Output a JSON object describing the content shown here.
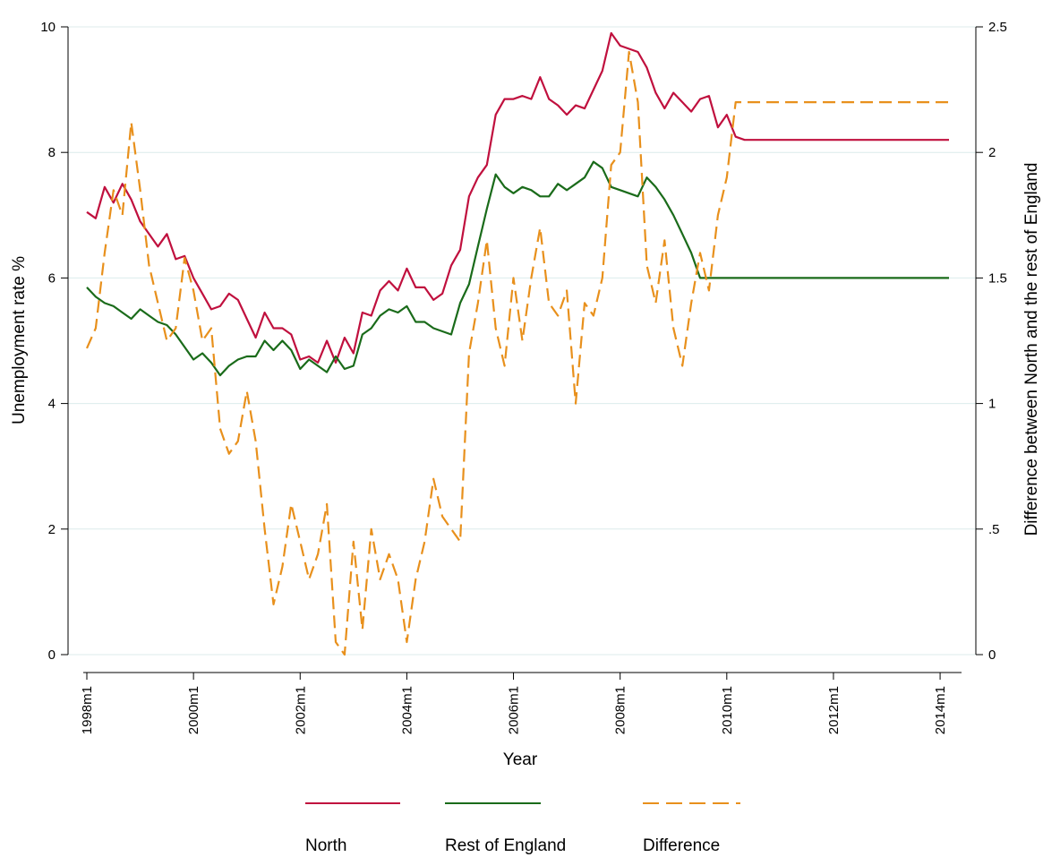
{
  "chart_data": {
    "type": "line",
    "title": "",
    "xlabel": "Year",
    "ylabel_left": "Unemployment rate %",
    "ylabel_right": "Difference between North and the rest of England",
    "x_ticks": [
      "1998m1",
      "2000m1",
      "2002m1",
      "2004m1",
      "2006m1",
      "2008m1",
      "2010m1",
      "2012m1",
      "2014m1"
    ],
    "x_range": [
      "1998m1",
      "2014m3"
    ],
    "ylim_left": [
      0,
      10
    ],
    "ylim_right": [
      0,
      2.5
    ],
    "y_ticks_left": [
      "0",
      "2",
      "4",
      "6",
      "8",
      "10"
    ],
    "y_ticks_right": [
      "0",
      ".5",
      "1",
      "1.5",
      "2",
      "2.5"
    ],
    "grid": "horizontal",
    "legend_position": "bottom",
    "x_month_offset": [
      0,
      2,
      4,
      6,
      8,
      10,
      12,
      14,
      16,
      18,
      20,
      22,
      24,
      26,
      28,
      30,
      32,
      34,
      36,
      38,
      40,
      42,
      44,
      46,
      48,
      50,
      52,
      54,
      56,
      58,
      60,
      62,
      64,
      66,
      68,
      70,
      72,
      74,
      76,
      78,
      80,
      82,
      84,
      86,
      88,
      90,
      92,
      94,
      96,
      98,
      100,
      102,
      104,
      106,
      108,
      110,
      112,
      114,
      116,
      118,
      120,
      122,
      124,
      126,
      128,
      130,
      132,
      134,
      136,
      138,
      140,
      142,
      144,
      146,
      148,
      150,
      152,
      154,
      156,
      158,
      160,
      162,
      164,
      166,
      168,
      170,
      172,
      174,
      194
    ],
    "series": [
      {
        "name": "North",
        "axis": "left",
        "color": "#c0103e",
        "style": "solid",
        "values": [
          7.05,
          6.95,
          7.45,
          7.2,
          7.5,
          7.25,
          6.9,
          6.7,
          6.5,
          6.7,
          6.3,
          6.35,
          6.0,
          5.75,
          5.5,
          5.55,
          5.75,
          5.65,
          5.35,
          5.05,
          5.45,
          5.2,
          5.2,
          5.1,
          4.7,
          4.75,
          4.65,
          5.0,
          4.65,
          5.05,
          4.8,
          5.45,
          5.4,
          5.8,
          5.95,
          5.8,
          6.15,
          5.85,
          5.85,
          5.65,
          5.75,
          6.2,
          6.45,
          7.3,
          7.6,
          7.8,
          8.6,
          8.85,
          8.85,
          8.9,
          8.85,
          9.2,
          8.85,
          8.75,
          8.6,
          8.75,
          8.7,
          9.0,
          9.3,
          9.9,
          9.7,
          9.65,
          9.6,
          9.35,
          8.95,
          8.7,
          8.95,
          8.8,
          8.65,
          8.85,
          8.9,
          8.4,
          8.6,
          8.25,
          8.2,
          8.2,
          8.2,
          8.2,
          8.2,
          8.2,
          8.2,
          8.2,
          8.2,
          8.2,
          8.2,
          8.2,
          8.2,
          8.2,
          8.2
        ]
      },
      {
        "name": "Rest of England",
        "axis": "left",
        "color": "#1a6b1a",
        "style": "solid",
        "values": [
          5.85,
          5.7,
          5.6,
          5.55,
          5.45,
          5.35,
          5.5,
          5.4,
          5.3,
          5.25,
          5.1,
          4.9,
          4.7,
          4.8,
          4.65,
          4.45,
          4.6,
          4.7,
          4.75,
          4.75,
          5.0,
          4.85,
          5.0,
          4.85,
          4.55,
          4.7,
          4.6,
          4.5,
          4.75,
          4.55,
          4.6,
          5.1,
          5.2,
          5.4,
          5.5,
          5.45,
          5.55,
          5.3,
          5.3,
          5.2,
          5.15,
          5.1,
          5.6,
          5.9,
          6.5,
          7.1,
          7.65,
          7.45,
          7.35,
          7.45,
          7.4,
          7.3,
          7.3,
          7.5,
          7.4,
          7.5,
          7.6,
          7.85,
          7.75,
          7.45,
          7.4,
          7.35,
          7.3,
          7.6,
          7.45,
          7.25,
          7.0,
          6.7,
          6.4,
          6.0,
          6.0,
          6.0,
          6.0,
          6.0,
          6.0,
          6.0,
          6.0,
          6.0,
          6.0,
          6.0,
          6.0,
          6.0,
          6.0,
          6.0,
          6.0,
          6.0,
          6.0,
          6.0,
          6.0
        ]
      },
      {
        "name": "Difference",
        "axis": "right",
        "color": "#e8901c",
        "style": "dashed",
        "values": [
          1.22,
          1.3,
          1.6,
          1.85,
          1.75,
          2.12,
          1.85,
          1.55,
          1.4,
          1.25,
          1.3,
          1.58,
          1.45,
          1.25,
          1.3,
          0.9,
          0.8,
          0.85,
          1.05,
          0.85,
          0.5,
          0.2,
          0.35,
          0.6,
          0.45,
          0.3,
          0.4,
          0.6,
          0.05,
          0.0,
          0.45,
          0.1,
          0.5,
          0.3,
          0.4,
          0.3,
          0.05,
          0.3,
          0.45,
          0.7,
          0.55,
          0.5,
          0.45,
          1.2,
          1.4,
          1.65,
          1.3,
          1.15,
          1.5,
          1.25,
          1.5,
          1.7,
          1.4,
          1.35,
          1.45,
          1.0,
          1.4,
          1.35,
          1.5,
          1.95,
          2.0,
          2.4,
          2.2,
          1.55,
          1.4,
          1.65,
          1.3,
          1.15,
          1.4,
          1.6,
          1.45,
          1.75,
          1.9,
          2.2,
          2.2,
          2.2,
          2.2,
          2.2,
          2.2,
          2.2,
          2.2,
          2.2,
          2.2,
          2.2,
          2.2,
          2.2,
          2.2,
          2.2,
          2.2
        ]
      }
    ]
  }
}
